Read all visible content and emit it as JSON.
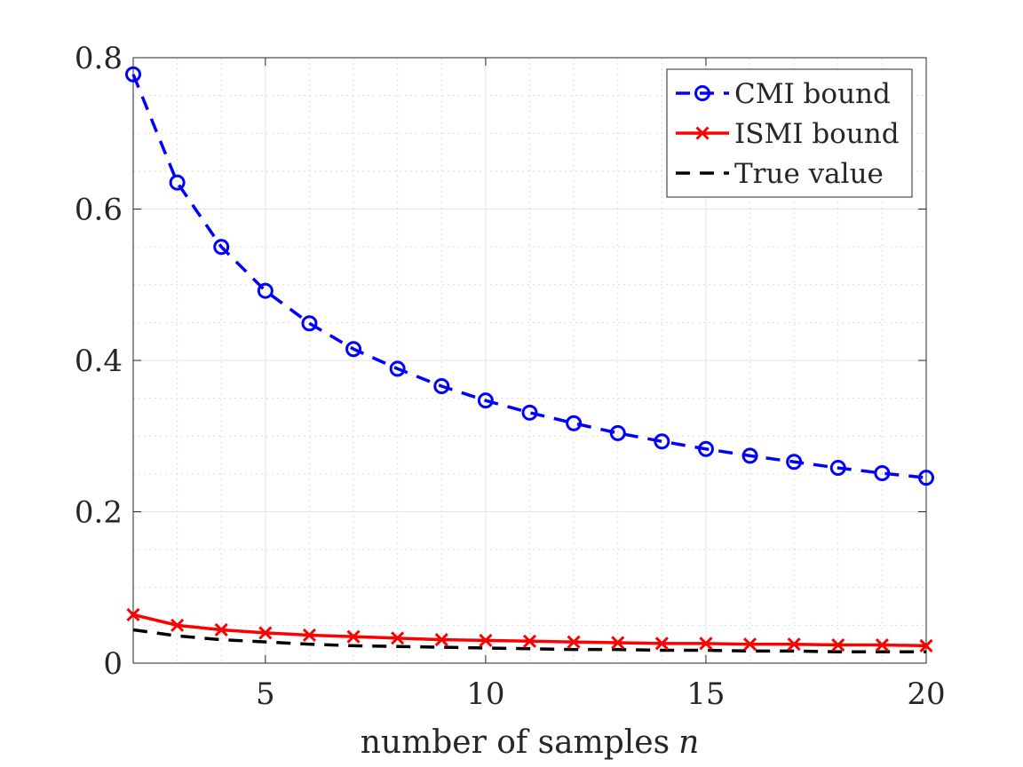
{
  "chart_data": {
    "type": "line",
    "title": "",
    "xlabel": "number of samples",
    "xlabel_var": "n",
    "ylabel": "",
    "xlim": [
      2,
      20
    ],
    "ylim": [
      0,
      0.8
    ],
    "xticks": [
      5,
      10,
      15,
      20
    ],
    "yticks": [
      0,
      0.2,
      0.4,
      0.6,
      0.8
    ],
    "xtick_labels": [
      "5",
      "10",
      "15",
      "20"
    ],
    "ytick_labels": [
      "0",
      "0.2",
      "0.4",
      "0.6",
      "0.8"
    ],
    "grid": true,
    "minor_grid": true,
    "legend_position": "top-right",
    "x": [
      2,
      3,
      4,
      5,
      6,
      7,
      8,
      9,
      10,
      11,
      12,
      13,
      14,
      15,
      16,
      17,
      18,
      19,
      20
    ],
    "series": [
      {
        "name": "CMI bound",
        "color": "#0000ff",
        "line_style": "dashed",
        "marker": "circle",
        "values": [
          0.778,
          0.635,
          0.55,
          0.492,
          0.449,
          0.415,
          0.389,
          0.366,
          0.347,
          0.331,
          0.317,
          0.304,
          0.293,
          0.283,
          0.274,
          0.266,
          0.258,
          0.251,
          0.245
        ]
      },
      {
        "name": "ISMI bound",
        "color": "#ff0000",
        "line_style": "solid",
        "marker": "x",
        "values": [
          0.064,
          0.05,
          0.044,
          0.04,
          0.037,
          0.035,
          0.033,
          0.031,
          0.03,
          0.029,
          0.028,
          0.027,
          0.026,
          0.026,
          0.025,
          0.025,
          0.024,
          0.024,
          0.023
        ]
      },
      {
        "name": "True value",
        "color": "#000000",
        "line_style": "dashed",
        "marker": "none",
        "values": [
          0.044,
          0.036,
          0.031,
          0.028,
          0.025,
          0.023,
          0.022,
          0.021,
          0.02,
          0.019,
          0.018,
          0.018,
          0.017,
          0.017,
          0.016,
          0.016,
          0.015,
          0.015,
          0.015
        ]
      }
    ]
  }
}
